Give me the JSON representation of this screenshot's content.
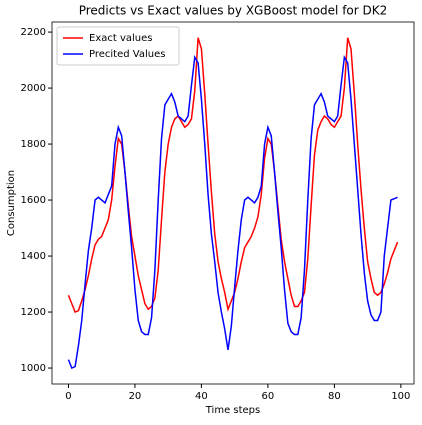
{
  "chart_data": {
    "type": "line",
    "title": "Predicts vs Exact values by XGBoost model for DK2",
    "xlabel": "Time steps",
    "ylabel": "Consumption",
    "x": [
      0,
      1,
      2,
      3,
      4,
      5,
      6,
      7,
      8,
      9,
      10,
      11,
      12,
      13,
      14,
      15,
      16,
      17,
      18,
      19,
      20,
      21,
      22,
      23,
      24,
      25,
      26,
      27,
      28,
      29,
      30,
      31,
      32,
      33,
      34,
      35,
      36,
      37,
      38,
      39,
      40,
      41,
      42,
      43,
      44,
      45,
      46,
      47,
      48,
      49,
      50,
      51,
      52,
      53,
      54,
      55,
      56,
      57,
      58,
      59,
      60,
      61,
      62,
      63,
      64,
      65,
      66,
      67,
      68,
      69,
      70,
      71,
      72,
      73,
      74,
      75,
      76,
      77,
      78,
      79,
      80,
      81,
      82,
      83,
      84,
      85,
      86,
      87,
      88,
      89,
      90,
      91,
      92,
      93,
      94,
      95,
      96,
      97,
      98,
      99
    ],
    "series": [
      {
        "name": "Exact values",
        "color": "#ff0000",
        "values": [
          1260,
          1230,
          1200,
          1205,
          1240,
          1280,
          1330,
          1390,
          1440,
          1460,
          1470,
          1500,
          1530,
          1600,
          1720,
          1820,
          1800,
          1700,
          1580,
          1470,
          1400,
          1330,
          1280,
          1230,
          1210,
          1220,
          1250,
          1350,
          1530,
          1700,
          1800,
          1860,
          1890,
          1900,
          1880,
          1860,
          1870,
          1890,
          1990,
          2180,
          2140,
          1980,
          1800,
          1630,
          1480,
          1380,
          1320,
          1270,
          1210,
          1240,
          1270,
          1320,
          1380,
          1430,
          1450,
          1470,
          1500,
          1540,
          1620,
          1750,
          1820,
          1800,
          1700,
          1580,
          1460,
          1380,
          1320,
          1260,
          1220,
          1220,
          1240,
          1270,
          1390,
          1580,
          1760,
          1850,
          1880,
          1900,
          1890,
          1870,
          1860,
          1880,
          1900,
          2000,
          2180,
          2140,
          1980,
          1800,
          1640,
          1500,
          1380,
          1320,
          1270,
          1260,
          1270,
          1300,
          1340,
          1390,
          1420,
          1450
        ]
      },
      {
        "name": "Precited Values",
        "color": "#0000ff",
        "values": [
          1030,
          1000,
          1005,
          1080,
          1170,
          1300,
          1420,
          1500,
          1600,
          1610,
          1600,
          1590,
          1620,
          1650,
          1800,
          1860,
          1830,
          1700,
          1560,
          1430,
          1280,
          1170,
          1130,
          1120,
          1120,
          1180,
          1350,
          1600,
          1820,
          1940,
          1960,
          1980,
          1950,
          1900,
          1890,
          1880,
          1900,
          2010,
          2110,
          2090,
          1960,
          1800,
          1620,
          1480,
          1380,
          1270,
          1200,
          1140,
          1065,
          1150,
          1290,
          1420,
          1530,
          1600,
          1610,
          1600,
          1590,
          1610,
          1650,
          1800,
          1860,
          1830,
          1700,
          1560,
          1430,
          1280,
          1160,
          1130,
          1120,
          1120,
          1180,
          1350,
          1600,
          1820,
          1940,
          1960,
          1980,
          1950,
          1900,
          1890,
          1880,
          1900,
          2010,
          2110,
          2090,
          1960,
          1800,
          1640,
          1480,
          1340,
          1240,
          1190,
          1170,
          1170,
          1200,
          1400,
          1500,
          1600,
          1605,
          1610
        ]
      }
    ],
    "xlim": [
      -4.95,
      103.95
    ],
    "xticks": [
      0,
      20,
      40,
      60,
      80,
      100
    ],
    "ylim": [
      943,
      2236
    ],
    "yticks": [
      1000,
      1200,
      1400,
      1600,
      1800,
      2000,
      2200
    ],
    "grid": false,
    "legend": "upper left"
  }
}
